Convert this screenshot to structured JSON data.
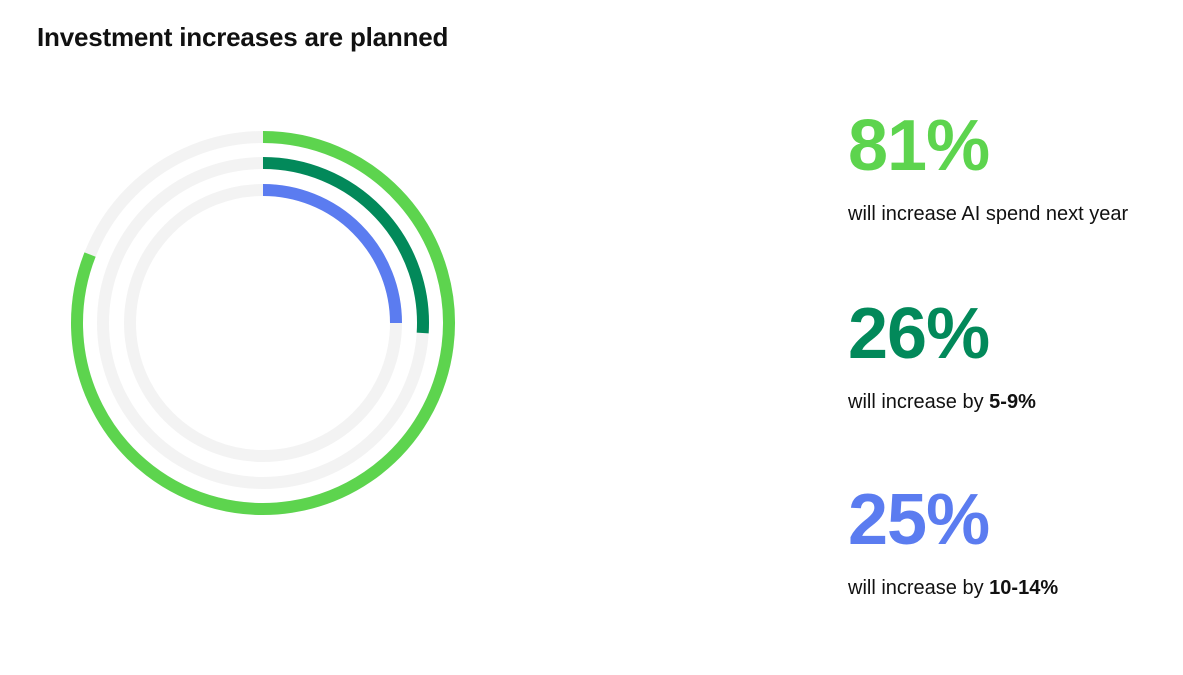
{
  "title": "Investment increases are planned",
  "colors": {
    "light_green": "#5DD44E",
    "dark_green": "#02895A",
    "blue": "#5B7CF0",
    "track": "#F3F3F3"
  },
  "chart_data": {
    "type": "radial-bar",
    "title": "Investment increases are planned",
    "series": [
      {
        "value": 81,
        "label": "81%",
        "color": "#5DD44E"
      },
      {
        "value": 26,
        "label": "26%",
        "color": "#02895A"
      },
      {
        "value": 25,
        "label": "25%",
        "color": "#5B7CF0"
      }
    ],
    "max": 100
  },
  "stats": [
    {
      "value": "81%",
      "caption_prefix": "will increase AI spend next year",
      "caption_bold": "",
      "color": "#5DD44E"
    },
    {
      "value": "26%",
      "caption_prefix": "will increase by ",
      "caption_bold": "5-9%",
      "color": "#02895A"
    },
    {
      "value": "25%",
      "caption_prefix": "will increase by ",
      "caption_bold": "10-14%",
      "color": "#5B7CF0"
    }
  ]
}
